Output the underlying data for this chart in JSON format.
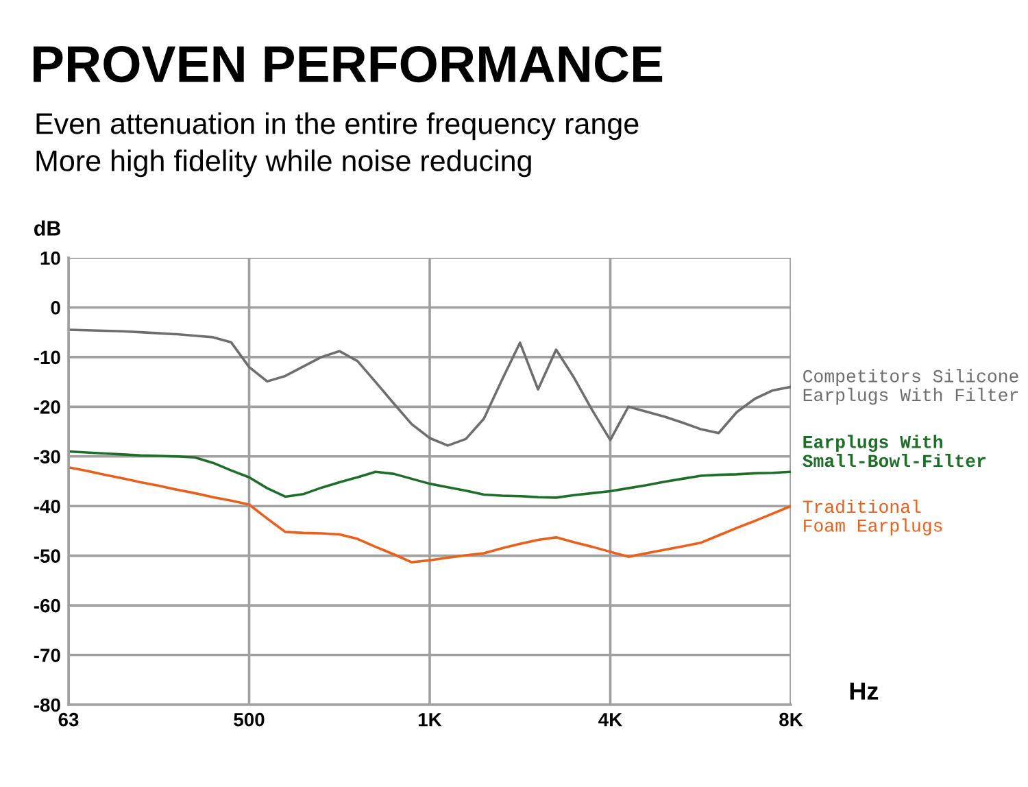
{
  "chart_data": {
    "type": "line",
    "title": "PROVEN PERFORMANCE",
    "subtitle": "Even attenuation in the entire frequency range\nMore high fidelity while noise reducing",
    "xlabel": "Hz",
    "ylabel": "dB",
    "categories": [
      "63",
      null,
      null,
      null,
      null,
      null,
      null,
      null,
      null,
      null,
      "500",
      null,
      null,
      null,
      null,
      null,
      null,
      null,
      null,
      null,
      "1K",
      null,
      null,
      null,
      null,
      null,
      null,
      null,
      null,
      null,
      "4K",
      null,
      null,
      null,
      null,
      null,
      null,
      null,
      null,
      null,
      "8K"
    ],
    "ylim": [
      -80,
      10
    ],
    "yticks": [
      -80,
      -70,
      -60,
      -50,
      -40,
      -30,
      -20,
      -10,
      0,
      10
    ],
    "grid": true,
    "legend": false,
    "marker": "none",
    "line_style": "solid",
    "series": [
      {
        "name": "Competitors Silicone\nEarplugs With Filter",
        "color": "#6e6e6e",
        "values": [
          -4.5,
          -4.6,
          -4.7,
          -4.8,
          -5.0,
          -5.2,
          -5.4,
          -5.7,
          -6.0,
          -7.0,
          -12,
          -14.9,
          -13.8,
          -11.9,
          -10,
          -8.8,
          -10.8,
          -15,
          -19.3,
          -23.5,
          -26.3,
          -27.8,
          -26.5,
          -22.4,
          -14.6,
          -7.1,
          -16.5,
          -8.5,
          -14.2,
          -20.7,
          -26.7,
          -20,
          -21,
          -22,
          -23.2,
          -24.5,
          -25.3,
          -21.1,
          -18.4,
          -16.7,
          -16
        ]
      },
      {
        "name": "Earplugs With\nSmall-Bowl-Filter",
        "color": "#1e6e2a",
        "values": [
          -29,
          -29.2,
          -29.4,
          -29.6,
          -29.8,
          -29.9,
          -30.0,
          -30.2,
          -31.3,
          -32.8,
          -34.2,
          -36.4,
          -38.1,
          -37.6,
          -36.3,
          -35.2,
          -34.2,
          -33.1,
          -33.5,
          -34.5,
          -35.5,
          -36.2,
          -36.9,
          -37.7,
          -37.9,
          -38.0,
          -38.2,
          -38.3,
          -37.8,
          -37.4,
          -37,
          -36.4,
          -35.8,
          -35.1,
          -34.5,
          -33.9,
          -33.7,
          -33.6,
          -33.4,
          -33.3,
          -33.1
        ]
      },
      {
        "name": "Traditional\nFoam Earplugs",
        "color": "#e8601c",
        "values": [
          -32.2,
          -32.9,
          -33.7,
          -34.4,
          -35.2,
          -35.9,
          -36.7,
          -37.4,
          -38.2,
          -38.9,
          -39.7,
          -42.5,
          -45.2,
          -45.4,
          -45.5,
          -45.7,
          -46.6,
          -48.2,
          -49.7,
          -51.3,
          -50.9,
          -50.4,
          -49.9,
          -49.5,
          -48.5,
          -47.6,
          -46.8,
          -46.3,
          -47.3,
          -48.2,
          -49.2,
          -50.2,
          -49.5,
          -48.8,
          -48.1,
          -47.4,
          -45.9,
          -44.4,
          -43.0,
          -41.5,
          -40
        ]
      }
    ]
  }
}
